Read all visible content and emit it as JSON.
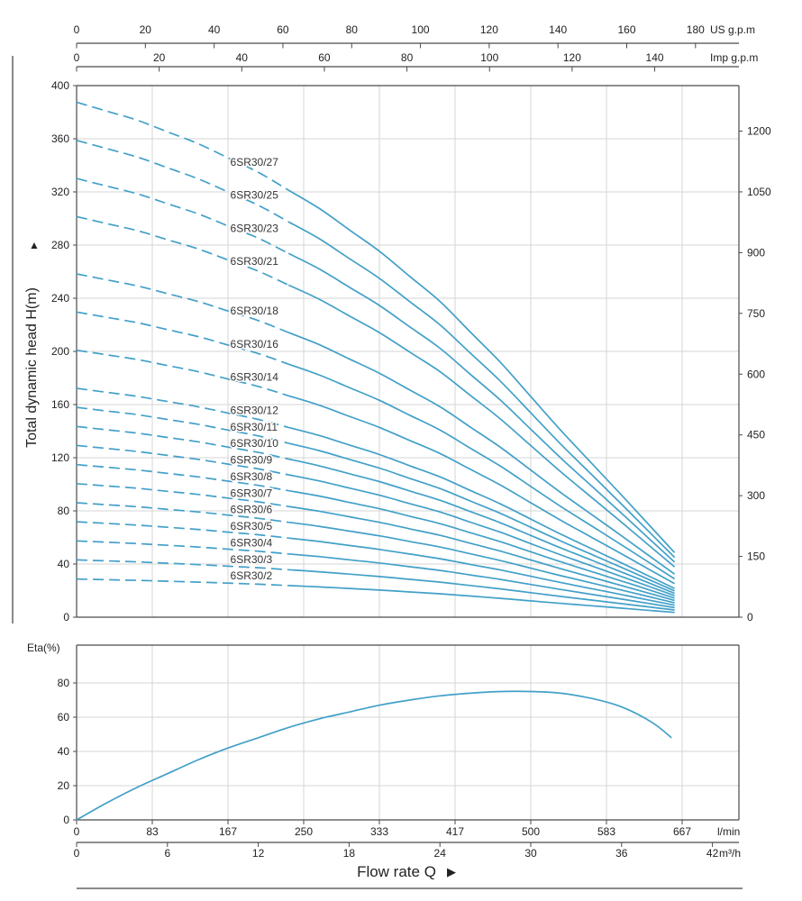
{
  "style": {
    "curve_color": "#42a0c8",
    "grid_color": "#d6d6d6",
    "axis_color": "#4a4a4a",
    "text_color": "#222222",
    "curve_label_color": "#333333",
    "border_color": "#8a8a8a"
  },
  "axes": {
    "us_gpm": {
      "unit": "US g.p.m",
      "ticks": [
        0,
        20,
        40,
        60,
        80,
        100,
        120,
        140,
        160,
        180
      ]
    },
    "imp_gpm": {
      "unit": "Imp g.p.m",
      "ticks": [
        0,
        20,
        40,
        60,
        80,
        100,
        120,
        140
      ]
    },
    "head_m": {
      "label": "Total dynamic head H(m)",
      "arrow": "▲",
      "ticks": [
        0,
        40,
        80,
        120,
        160,
        200,
        240,
        280,
        320,
        360,
        400
      ]
    },
    "head_ft": {
      "ticks": [
        0,
        150,
        300,
        450,
        600,
        750,
        900,
        1050,
        1200
      ]
    },
    "eta": {
      "label": "Eta(%)",
      "ticks": [
        0,
        20,
        40,
        60,
        80
      ]
    },
    "l_min": {
      "unit": "l/min",
      "ticks": [
        0,
        83,
        167,
        250,
        333,
        417,
        500,
        583,
        667
      ]
    },
    "m3_h": {
      "unit": "m³/h",
      "ticks": [
        0,
        6,
        12,
        18,
        24,
        30,
        36,
        42
      ]
    },
    "flow": {
      "label": "Flow  rate Q",
      "arrow": "▶"
    }
  },
  "chart_data": [
    {
      "type": "line",
      "title": "Total dynamic head vs flow rate (6SR30 series pump curves)",
      "xlabel": "Flow rate Q",
      "x_units": "m³/h",
      "ylabel": "Total dynamic head H(m)",
      "xlim": [
        0,
        43.75
      ],
      "ylim": [
        0,
        400
      ],
      "grid": true,
      "dashed_below_x": 14,
      "x": [
        0,
        4,
        8,
        12,
        16,
        20,
        24,
        28,
        32,
        36,
        39.5
      ],
      "series": [
        {
          "name": "6SR30/27",
          "values": [
            387.5,
            374.0,
            356.4,
            334.8,
            307.8,
            275.4,
            237.6,
            191.7,
            140.4,
            91.8,
            48.6
          ]
        },
        {
          "name": "6SR30/25",
          "values": [
            358.8,
            346.3,
            330.0,
            310.0,
            285.0,
            255.0,
            220.0,
            177.5,
            130.0,
            85.0,
            45.0
          ]
        },
        {
          "name": "6SR30/23",
          "values": [
            330.1,
            318.6,
            303.6,
            285.2,
            262.2,
            234.6,
            202.4,
            163.3,
            119.6,
            78.2,
            41.4
          ]
        },
        {
          "name": "6SR30/21",
          "values": [
            301.4,
            290.9,
            277.2,
            260.4,
            239.4,
            214.2,
            184.8,
            149.1,
            109.2,
            71.4,
            37.8
          ]
        },
        {
          "name": "6SR30/18",
          "values": [
            258.3,
            249.3,
            237.6,
            223.2,
            205.2,
            183.6,
            158.4,
            127.8,
            93.6,
            61.2,
            32.4
          ]
        },
        {
          "name": "6SR30/16",
          "values": [
            229.6,
            221.6,
            211.2,
            198.4,
            182.4,
            163.2,
            140.8,
            113.6,
            83.2,
            54.4,
            28.8
          ]
        },
        {
          "name": "6SR30/14",
          "values": [
            200.9,
            193.9,
            184.8,
            173.6,
            159.6,
            142.8,
            123.2,
            99.4,
            72.8,
            47.6,
            25.2
          ]
        },
        {
          "name": "6SR30/12",
          "values": [
            172.2,
            166.2,
            158.4,
            148.8,
            136.8,
            122.4,
            105.6,
            85.2,
            62.4,
            40.8,
            21.6
          ]
        },
        {
          "name": "6SR30/11",
          "values": [
            157.9,
            152.4,
            145.2,
            136.4,
            125.4,
            112.2,
            96.8,
            78.1,
            57.2,
            37.4,
            19.8
          ]
        },
        {
          "name": "6SR30/10",
          "values": [
            143.5,
            138.5,
            132.0,
            124.0,
            114.0,
            102.0,
            88.0,
            71.0,
            52.0,
            34.0,
            18.0
          ]
        },
        {
          "name": "6SR30/9",
          "values": [
            129.2,
            124.7,
            118.8,
            111.6,
            102.6,
            91.8,
            79.2,
            63.9,
            46.8,
            30.6,
            16.2
          ]
        },
        {
          "name": "6SR30/8",
          "values": [
            114.8,
            110.8,
            105.6,
            99.2,
            91.2,
            81.6,
            70.4,
            56.8,
            41.6,
            27.2,
            14.4
          ]
        },
        {
          "name": "6SR30/7",
          "values": [
            100.5,
            97.0,
            92.4,
            86.8,
            79.8,
            71.4,
            61.6,
            49.7,
            36.4,
            23.8,
            12.6
          ]
        },
        {
          "name": "6SR30/6",
          "values": [
            86.1,
            83.1,
            79.2,
            74.4,
            68.4,
            61.2,
            52.8,
            42.6,
            31.2,
            20.4,
            10.8
          ]
        },
        {
          "name": "6SR30/5",
          "values": [
            71.8,
            69.3,
            66.0,
            62.0,
            57.0,
            51.0,
            44.0,
            35.5,
            26.0,
            17.0,
            9.0
          ]
        },
        {
          "name": "6SR30/4",
          "values": [
            57.4,
            55.4,
            52.8,
            49.6,
            45.6,
            40.8,
            35.2,
            28.4,
            20.8,
            13.6,
            7.2
          ]
        },
        {
          "name": "6SR30/3",
          "values": [
            43.1,
            41.6,
            39.6,
            37.2,
            34.2,
            30.6,
            26.4,
            21.3,
            15.6,
            10.2,
            5.4
          ]
        },
        {
          "name": "6SR30/2",
          "values": [
            28.7,
            27.7,
            26.4,
            24.8,
            22.8,
            20.4,
            17.6,
            14.2,
            10.4,
            6.8,
            3.6
          ]
        }
      ]
    },
    {
      "type": "line",
      "title": "Pump efficiency",
      "xlabel": "Flow rate Q",
      "x_units": "m³/h",
      "ylabel": "Eta(%)",
      "xlim": [
        0,
        43.75
      ],
      "ylim": [
        0,
        80
      ],
      "grid": true,
      "name": "Eta",
      "x": [
        0,
        2,
        4,
        6,
        8,
        10,
        12,
        14,
        16,
        18,
        20,
        22,
        24,
        26,
        28,
        30,
        32,
        34,
        36,
        38,
        39.3
      ],
      "values": [
        0,
        10,
        19,
        27,
        35,
        42,
        48,
        54,
        59,
        63,
        67,
        70,
        72.5,
        74,
        75,
        75,
        74,
        71,
        66,
        57,
        48
      ]
    }
  ]
}
